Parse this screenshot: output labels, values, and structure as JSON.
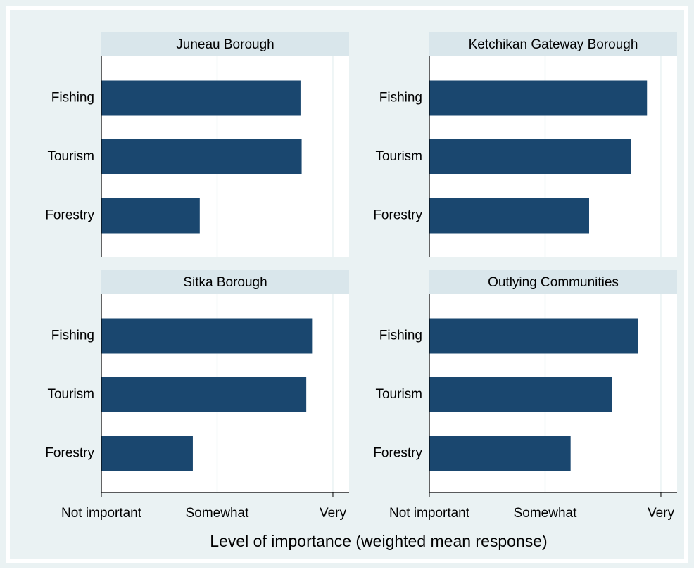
{
  "chart_data": [
    {
      "type": "bar",
      "title": "Juneau Borough",
      "categories": [
        "Fishing",
        "Tourism",
        "Forestry"
      ],
      "values": [
        2.72,
        2.73,
        1.85
      ]
    },
    {
      "type": "bar",
      "title": "Ketchikan Gateway Borough",
      "categories": [
        "Fishing",
        "Tourism",
        "Forestry"
      ],
      "values": [
        2.88,
        2.74,
        2.38
      ]
    },
    {
      "type": "bar",
      "title": "Sitka Borough",
      "categories": [
        "Fishing",
        "Tourism",
        "Forestry"
      ],
      "values": [
        2.82,
        2.77,
        1.79
      ]
    },
    {
      "type": "bar",
      "title": "Outlying Communities",
      "categories": [
        "Fishing",
        "Tourism",
        "Forestry"
      ],
      "values": [
        2.8,
        2.58,
        2.22
      ]
    }
  ],
  "xlabel": "Level of importance (weighted mean response)",
  "xlim": [
    1,
    3.14
  ],
  "xticks": [
    {
      "value": 1,
      "label": "Not important"
    },
    {
      "value": 2,
      "label": "Somewhat"
    },
    {
      "value": 3,
      "label": "Very"
    }
  ],
  "color": "#1a476f",
  "grid": true
}
